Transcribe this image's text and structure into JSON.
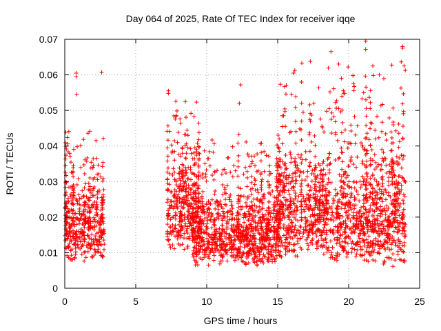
{
  "chart_data": {
    "type": "scatter",
    "title": "Day 064 of 2025, Rate Of TEC Index for receiver iqqe",
    "xlabel": "GPS time / hours",
    "ylabel": "ROTI / TECUs",
    "xlim": [
      0,
      25
    ],
    "ylim": [
      0,
      0.07
    ],
    "xticks": [
      0,
      5,
      10,
      15,
      20,
      25
    ],
    "xtick_labels": [
      "0",
      "5",
      "10",
      "15",
      "20",
      "25"
    ],
    "yticks": [
      0,
      0.01,
      0.02,
      0.03,
      0.04,
      0.05,
      0.06,
      0.07
    ],
    "ytick_labels": [
      "0",
      "0.01",
      "0.02",
      "0.03",
      "0.04",
      "0.05",
      "0.06",
      "0.07"
    ],
    "grid": true,
    "marker": "plus",
    "color": "#ff0000",
    "series": [
      {
        "name": "ROTI",
        "segments": [
          {
            "x_start": 0.0,
            "x_end": 2.8,
            "y_min": 0.007,
            "y_max": 0.049,
            "y_mode": 0.019
          },
          {
            "x_start": 7.2,
            "x_end": 9.5,
            "y_min": 0.01,
            "y_max": 0.055,
            "y_mode": 0.025
          },
          {
            "x_start": 9.0,
            "x_end": 15.2,
            "y_min": 0.006,
            "y_max": 0.045,
            "y_mode": 0.014
          },
          {
            "x_start": 15.0,
            "x_end": 18.5,
            "y_min": 0.008,
            "y_max": 0.063,
            "y_mode": 0.022
          },
          {
            "x_start": 18.5,
            "x_end": 24.0,
            "y_min": 0.006,
            "y_max": 0.068,
            "y_mode": 0.018
          }
        ],
        "highlights": [
          {
            "x": 0.8,
            "y": 0.0605
          },
          {
            "x": 0.8,
            "y": 0.0595
          },
          {
            "x": 0.85,
            "y": 0.0545
          },
          {
            "x": 2.6,
            "y": 0.0607
          },
          {
            "x": 7.3,
            "y": 0.0555
          },
          {
            "x": 7.3,
            "y": 0.0548
          },
          {
            "x": 8.5,
            "y": 0.0525
          },
          {
            "x": 12.4,
            "y": 0.0572
          },
          {
            "x": 12.3,
            "y": 0.052
          },
          {
            "x": 16.1,
            "y": 0.0605
          },
          {
            "x": 16.7,
            "y": 0.0633
          },
          {
            "x": 17.3,
            "y": 0.0638
          },
          {
            "x": 21.2,
            "y": 0.0695
          },
          {
            "x": 21.2,
            "y": 0.0672
          },
          {
            "x": 21.7,
            "y": 0.0625
          },
          {
            "x": 23.8,
            "y": 0.068
          },
          {
            "x": 23.8,
            "y": 0.0675
          },
          {
            "x": 23.9,
            "y": 0.0625
          },
          {
            "x": 20.3,
            "y": 0.0598
          },
          {
            "x": 19.7,
            "y": 0.0548
          }
        ]
      }
    ]
  }
}
